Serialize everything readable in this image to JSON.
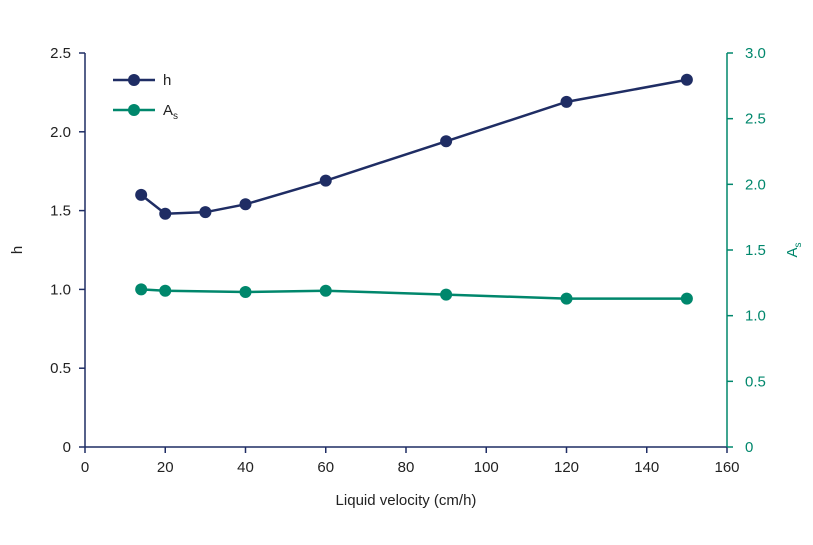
{
  "chart_data": {
    "type": "line",
    "title": "",
    "xlabel": "Liquid velocity (cm/h)",
    "ylabel": "h",
    "y2label": "A",
    "y2label_sub": "s",
    "xlim": [
      0,
      160
    ],
    "ylim": [
      0,
      2.5
    ],
    "y2lim": [
      0,
      3.0
    ],
    "xticks": [
      "0",
      "20",
      "40",
      "60",
      "80",
      "100",
      "120",
      "140",
      "160"
    ],
    "yticks": [
      "0",
      "0.5",
      "1.0",
      "1.5",
      "2.0",
      "2.5"
    ],
    "y2ticks": [
      "0",
      "0.5",
      "1.0",
      "1.5",
      "2.0",
      "2.5",
      "3.0"
    ],
    "grid": false,
    "legend_position": "top-left",
    "series": [
      {
        "name": "h",
        "axis": "left",
        "color": "#1f2d64",
        "x": [
          14,
          20,
          30,
          40,
          60,
          90,
          120,
          150
        ],
        "y": [
          1.6,
          1.48,
          1.49,
          1.54,
          1.69,
          1.94,
          2.19,
          2.33
        ]
      },
      {
        "name": "A",
        "name_sub": "s",
        "axis": "right",
        "color": "#00876c",
        "x": [
          14,
          20,
          40,
          60,
          90,
          120,
          150
        ],
        "y": [
          1.2,
          1.19,
          1.18,
          1.19,
          1.16,
          1.13,
          1.13
        ]
      }
    ]
  }
}
